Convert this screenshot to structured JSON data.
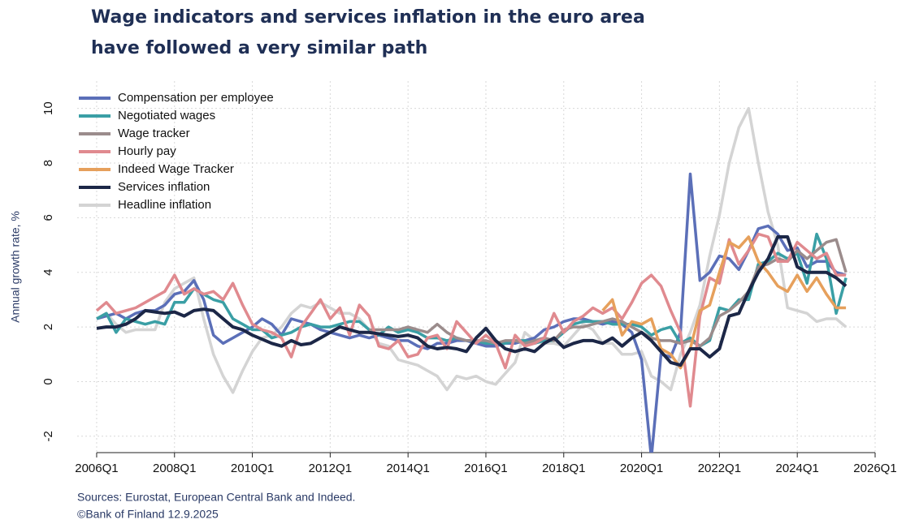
{
  "chart_data": {
    "type": "line",
    "title": [
      "Wage indicators and services inflation in the euro area",
      "have followed a very similar path"
    ],
    "ylabel": "Annual growth rate, %",
    "source": [
      "Sources: Eurostat, European Central Bank and Indeed.",
      "©Bank of Finland 12.9.2025"
    ],
    "x": [
      2006,
      2006.25,
      2006.5,
      2006.75,
      2007,
      2007.25,
      2007.5,
      2007.75,
      2008,
      2008.25,
      2008.5,
      2008.75,
      2009,
      2009.25,
      2009.5,
      2009.75,
      2010,
      2010.25,
      2010.5,
      2010.75,
      2011,
      2011.25,
      2011.5,
      2011.75,
      2012,
      2012.25,
      2012.5,
      2012.75,
      2013,
      2013.25,
      2013.5,
      2013.75,
      2014,
      2014.25,
      2014.5,
      2014.75,
      2015,
      2015.25,
      2015.5,
      2015.75,
      2016,
      2016.25,
      2016.5,
      2016.75,
      2017,
      2017.25,
      2017.5,
      2017.75,
      2018,
      2018.25,
      2018.5,
      2018.75,
      2019,
      2019.25,
      2019.5,
      2019.75,
      2020,
      2020.25,
      2020.5,
      2020.75,
      2021,
      2021.25,
      2021.5,
      2021.75,
      2022,
      2022.25,
      2022.5,
      2022.75,
      2023,
      2023.25,
      2023.5,
      2023.75,
      2024,
      2024.25,
      2024.5,
      2024.75,
      2025,
      2025.25
    ],
    "xlim": [
      2005.5,
      2026
    ],
    "xticks": [
      {
        "value": 2006,
        "label": "2006Q1"
      },
      {
        "value": 2008,
        "label": "2008Q1"
      },
      {
        "value": 2010,
        "label": "2010Q1"
      },
      {
        "value": 2012,
        "label": "2012Q1"
      },
      {
        "value": 2014,
        "label": "2014Q1"
      },
      {
        "value": 2016,
        "label": "2016Q1"
      },
      {
        "value": 2018,
        "label": "2018Q1"
      },
      {
        "value": 2020,
        "label": "2020Q1"
      },
      {
        "value": 2022,
        "label": "2022Q1"
      },
      {
        "value": 2024,
        "label": "2024Q1"
      },
      {
        "value": 2026,
        "label": "2026Q1"
      }
    ],
    "ylim": [
      -2.6,
      11
    ],
    "yticks": [
      -2,
      0,
      2,
      4,
      6,
      8,
      10
    ],
    "grid": true,
    "legend": "upper left",
    "series": [
      {
        "name": "Headline inflation",
        "color": "#d4d4d4",
        "values": [
          2.3,
          2.5,
          2.1,
          1.8,
          1.9,
          1.9,
          1.9,
          2.9,
          3.4,
          3.6,
          3.8,
          2.3,
          1.0,
          0.2,
          -0.4,
          0.4,
          1.1,
          1.6,
          1.7,
          2.0,
          2.5,
          2.8,
          2.7,
          2.9,
          2.7,
          2.5,
          2.5,
          2.3,
          1.9,
          1.4,
          1.3,
          0.8,
          0.7,
          0.6,
          0.4,
          0.2,
          -0.3,
          0.2,
          0.1,
          0.2,
          0.0,
          -0.1,
          0.3,
          0.7,
          1.8,
          1.5,
          1.4,
          1.4,
          1.3,
          1.7,
          2.1,
          1.9,
          1.4,
          1.4,
          1.0,
          1.0,
          1.1,
          0.2,
          0.0,
          -0.3,
          1.0,
          1.8,
          2.8,
          4.6,
          6.1,
          8.0,
          9.3,
          10.0,
          8.0,
          6.2,
          5.0,
          2.7,
          2.6,
          2.5,
          2.2,
          2.3,
          2.3,
          2.0
        ]
      },
      {
        "name": "Compensation per employee",
        "color": "#5b6fb8",
        "values": [
          2.3,
          2.4,
          2.5,
          2.3,
          2.5,
          2.6,
          2.6,
          2.8,
          3.2,
          3.3,
          3.7,
          3.0,
          1.7,
          1.4,
          1.6,
          1.8,
          2.0,
          2.3,
          2.1,
          1.7,
          2.3,
          2.2,
          2.1,
          1.9,
          1.8,
          1.7,
          1.6,
          1.7,
          1.6,
          1.7,
          1.6,
          1.5,
          1.5,
          1.3,
          1.2,
          1.4,
          1.4,
          1.5,
          1.5,
          1.4,
          1.3,
          1.3,
          1.4,
          1.4,
          1.5,
          1.6,
          1.9,
          2.0,
          2.2,
          2.3,
          2.3,
          2.2,
          2.1,
          2.2,
          2.1,
          1.8,
          0.8,
          -2.8,
          1.0,
          0.9,
          1.8,
          7.6,
          3.7,
          4.0,
          4.6,
          4.5,
          4.1,
          4.8,
          5.6,
          5.7,
          5.4,
          4.8,
          4.9,
          4.2,
          4.4,
          4.4,
          4.0,
          3.9
        ]
      },
      {
        "name": "Negotiated wages",
        "color": "#3a9fa5",
        "values": [
          2.3,
          2.5,
          1.8,
          2.3,
          2.2,
          2.1,
          2.2,
          2.1,
          2.9,
          2.9,
          3.4,
          3.2,
          3.0,
          2.9,
          2.3,
          2.1,
          1.9,
          1.9,
          1.6,
          1.7,
          1.8,
          2.0,
          2.1,
          2.0,
          2.0,
          2.1,
          2.2,
          2.2,
          1.9,
          1.7,
          2.0,
          1.8,
          1.9,
          1.8,
          1.6,
          1.6,
          1.5,
          1.6,
          1.5,
          1.5,
          1.4,
          1.4,
          1.4,
          1.5,
          1.5,
          1.4,
          1.5,
          1.5,
          1.8,
          2.1,
          2.2,
          2.2,
          2.2,
          2.1,
          2.1,
          2.1,
          2.0,
          1.7,
          1.9,
          2.0,
          1.4,
          1.6,
          1.3,
          1.5,
          2.7,
          2.6,
          3.0,
          3.0,
          4.3,
          4.4,
          4.7,
          4.5,
          4.7,
          3.6,
          5.4,
          4.5,
          2.5,
          3.8
        ]
      },
      {
        "name": "Wage tracker",
        "color": "#9b8c8c",
        "values": [
          null,
          null,
          null,
          null,
          null,
          null,
          null,
          null,
          null,
          null,
          null,
          null,
          null,
          null,
          null,
          null,
          null,
          null,
          null,
          null,
          null,
          null,
          null,
          null,
          null,
          null,
          null,
          null,
          1.9,
          1.9,
          1.9,
          1.9,
          2.0,
          1.9,
          1.8,
          2.1,
          1.8,
          1.6,
          1.5,
          1.5,
          1.5,
          1.4,
          1.5,
          1.5,
          1.4,
          1.5,
          1.6,
          1.5,
          1.9,
          2.0,
          2.0,
          2.1,
          2.2,
          2.3,
          2.2,
          2.0,
          1.8,
          1.6,
          1.5,
          1.5,
          1.4,
          1.5,
          1.3,
          1.6,
          2.4,
          2.6,
          2.9,
          3.3,
          4.2,
          4.3,
          4.5,
          4.4,
          4.8,
          4.5,
          4.8,
          5.1,
          5.2,
          4.0
        ]
      },
      {
        "name": "Hourly pay",
        "color": "#e08a8f",
        "values": [
          2.6,
          2.9,
          2.5,
          2.6,
          2.7,
          2.9,
          3.1,
          3.3,
          3.9,
          3.2,
          3.4,
          3.2,
          3.3,
          3.0,
          3.6,
          2.8,
          2.1,
          1.9,
          1.8,
          1.6,
          0.9,
          2.0,
          2.5,
          3.0,
          2.3,
          2.7,
          1.7,
          2.8,
          2.4,
          1.3,
          1.2,
          1.5,
          0.9,
          1.0,
          1.6,
          1.7,
          1.2,
          2.2,
          1.8,
          1.4,
          1.7,
          1.4,
          0.5,
          1.7,
          1.3,
          1.4,
          1.6,
          2.5,
          1.8,
          2.2,
          2.4,
          2.7,
          2.5,
          2.7,
          2.3,
          2.9,
          3.6,
          3.9,
          3.5,
          2.6,
          1.8,
          -0.9,
          2.4,
          3.8,
          3.6,
          5.2,
          4.3,
          4.8,
          5.4,
          5.3,
          4.4,
          4.4,
          5.1,
          4.8,
          4.5,
          4.7,
          3.9,
          3.9
        ]
      },
      {
        "name": "Indeed Wage Tracker",
        "color": "#e6a05c",
        "values": [
          null,
          null,
          null,
          null,
          null,
          null,
          null,
          null,
          null,
          null,
          null,
          null,
          null,
          null,
          null,
          null,
          null,
          null,
          null,
          null,
          null,
          null,
          null,
          null,
          null,
          null,
          null,
          null,
          null,
          null,
          null,
          null,
          null,
          null,
          null,
          null,
          null,
          null,
          null,
          null,
          null,
          null,
          null,
          null,
          null,
          null,
          null,
          null,
          null,
          null,
          null,
          null,
          2.6,
          3.0,
          1.7,
          2.2,
          2.1,
          2.3,
          1.2,
          1.0,
          0.5,
          1.2,
          2.6,
          2.8,
          4.0,
          5.1,
          4.9,
          5.3,
          4.4,
          4.0,
          3.5,
          3.3,
          3.9,
          3.3,
          3.8,
          3.2,
          2.7,
          2.7
        ]
      },
      {
        "name": "Services inflation",
        "color": "#1c2747",
        "values": [
          1.95,
          2.0,
          2.0,
          2.1,
          2.3,
          2.6,
          2.55,
          2.5,
          2.55,
          2.4,
          2.6,
          2.65,
          2.6,
          2.3,
          2.0,
          1.9,
          1.7,
          1.55,
          1.4,
          1.3,
          1.5,
          1.35,
          1.4,
          1.6,
          1.8,
          2.0,
          1.9,
          1.8,
          1.8,
          1.75,
          1.7,
          1.65,
          1.7,
          1.6,
          1.3,
          1.2,
          1.25,
          1.2,
          1.1,
          1.6,
          1.95,
          1.5,
          1.2,
          1.1,
          1.2,
          1.1,
          1.4,
          1.6,
          1.25,
          1.4,
          1.5,
          1.5,
          1.4,
          1.6,
          1.3,
          1.6,
          1.8,
          1.5,
          1.1,
          0.7,
          0.6,
          1.2,
          1.2,
          0.9,
          1.2,
          2.4,
          2.5,
          3.3,
          4.0,
          4.5,
          5.3,
          5.3,
          4.2,
          4.0,
          4.0,
          4.0,
          3.8,
          3.5
        ]
      }
    ],
    "legend_order": [
      1,
      2,
      3,
      4,
      5,
      6,
      0
    ]
  }
}
